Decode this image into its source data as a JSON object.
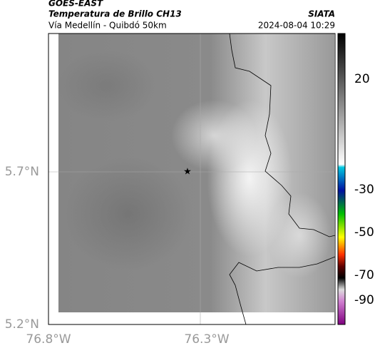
{
  "header": {
    "source": "GOES-EAST",
    "product": "Temperatura de Brillo CH13",
    "region": "Vía Medellín - Quibdó 50km",
    "agency": "SIATA",
    "timestamp": "2024-08-04 10:29"
  },
  "axes": {
    "lat_ticks": [
      "5.7°N",
      "5.2°N"
    ],
    "lon_ticks": [
      "76.8°W",
      "76.3°W"
    ]
  },
  "colorbar": {
    "ticks": [
      "20",
      "-30",
      "-50",
      "-70",
      "-90"
    ]
  }
}
